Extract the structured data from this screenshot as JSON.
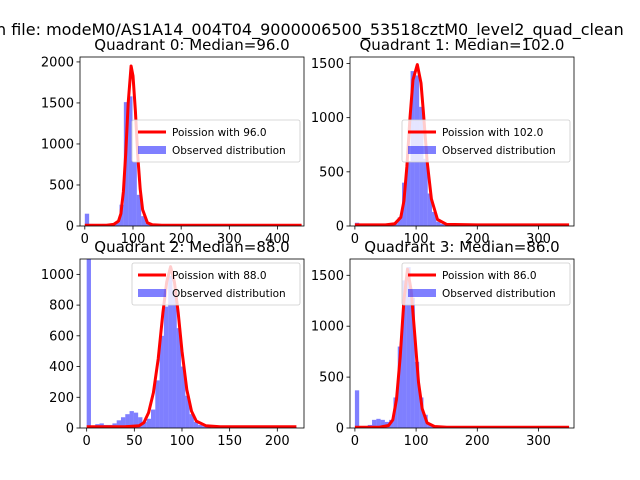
{
  "figure": {
    "suptitle": "n file: modeM0/AS1A14_004T04_9000006500_53518cztM0_level2_quad_clean"
  },
  "chart_data": [
    {
      "type": "bar",
      "title": "Quadrant 0: Median=96.0",
      "xlim": [
        -10,
        455
      ],
      "ylim": [
        0,
        2060
      ],
      "xticks": [
        0,
        100,
        200,
        300,
        400
      ],
      "yticks": [
        0,
        500,
        1000,
        1500,
        2000
      ],
      "legend_position": "center-right",
      "series": [
        {
          "name": "Poission with 96.0",
          "kind": "line",
          "color": "#ff0000",
          "x": [
            0,
            45,
            60,
            70,
            75,
            80,
            85,
            90,
            96,
            100,
            105,
            110,
            115,
            120,
            130,
            140,
            160,
            200,
            300,
            450
          ],
          "values": [
            10,
            10,
            20,
            60,
            150,
            420,
            900,
            1500,
            1950,
            1830,
            1400,
            850,
            450,
            200,
            40,
            15,
            10,
            10,
            10,
            10
          ]
        },
        {
          "name": "Observed distribution",
          "kind": "hist",
          "color": "#0000ff",
          "bin_width": 9,
          "bins": [
            {
              "x": 0,
              "y": 150
            },
            {
              "x": 9,
              "y": 25
            },
            {
              "x": 18,
              "y": 20
            },
            {
              "x": 27,
              "y": 20
            },
            {
              "x": 36,
              "y": 25
            },
            {
              "x": 45,
              "y": 25
            },
            {
              "x": 54,
              "y": 30
            },
            {
              "x": 63,
              "y": 40
            },
            {
              "x": 72,
              "y": 260
            },
            {
              "x": 81,
              "y": 1510
            },
            {
              "x": 90,
              "y": 1580
            },
            {
              "x": 99,
              "y": 780
            },
            {
              "x": 108,
              "y": 380
            },
            {
              "x": 117,
              "y": 120
            },
            {
              "x": 126,
              "y": 40
            },
            {
              "x": 135,
              "y": 15
            },
            {
              "x": 144,
              "y": 10
            },
            {
              "x": 153,
              "y": 8
            },
            {
              "x": 162,
              "y": 6
            },
            {
              "x": 171,
              "y": 5
            },
            {
              "x": 180,
              "y": 5
            },
            {
              "x": 190,
              "y": 4
            },
            {
              "x": 200,
              "y": 3
            },
            {
              "x": 250,
              "y": 3
            },
            {
              "x": 300,
              "y": 3
            },
            {
              "x": 350,
              "y": 3
            },
            {
              "x": 400,
              "y": 3
            },
            {
              "x": 440,
              "y": 3
            }
          ]
        }
      ]
    },
    {
      "type": "bar",
      "title": "Quadrant 1: Median=102.0",
      "xlim": [
        -8,
        358
      ],
      "ylim": [
        0,
        1560
      ],
      "xticks": [
        0,
        100,
        200,
        300
      ],
      "yticks": [
        0,
        500,
        1000,
        1500
      ],
      "legend_position": "center-right",
      "series": [
        {
          "name": "Poission with 102.0",
          "kind": "line",
          "color": "#ff0000",
          "x": [
            0,
            50,
            65,
            75,
            80,
            85,
            90,
            95,
            102,
            108,
            112,
            118,
            125,
            135,
            150,
            200,
            350
          ],
          "values": [
            10,
            10,
            20,
            80,
            230,
            550,
            1000,
            1350,
            1490,
            1320,
            1050,
            600,
            250,
            60,
            15,
            10,
            10
          ]
        },
        {
          "name": "Observed distribution",
          "kind": "hist",
          "color": "#0000ff",
          "bin_width": 7,
          "bins": [
            {
              "x": 0,
              "y": 30
            },
            {
              "x": 7,
              "y": 10
            },
            {
              "x": 14,
              "y": 8
            },
            {
              "x": 21,
              "y": 8
            },
            {
              "x": 28,
              "y": 10
            },
            {
              "x": 35,
              "y": 10
            },
            {
              "x": 42,
              "y": 10
            },
            {
              "x": 49,
              "y": 12
            },
            {
              "x": 56,
              "y": 15
            },
            {
              "x": 63,
              "y": 25
            },
            {
              "x": 70,
              "y": 80
            },
            {
              "x": 77,
              "y": 400
            },
            {
              "x": 84,
              "y": 600
            },
            {
              "x": 91,
              "y": 1430
            },
            {
              "x": 98,
              "y": 1390
            },
            {
              "x": 105,
              "y": 1100
            },
            {
              "x": 112,
              "y": 620
            },
            {
              "x": 119,
              "y": 300
            },
            {
              "x": 126,
              "y": 130
            },
            {
              "x": 133,
              "y": 40
            },
            {
              "x": 140,
              "y": 20
            },
            {
              "x": 147,
              "y": 12
            },
            {
              "x": 200,
              "y": 5
            },
            {
              "x": 300,
              "y": 4
            },
            {
              "x": 343,
              "y": 4
            }
          ]
        }
      ]
    },
    {
      "type": "bar",
      "title": "Quadrant 2: Median=88.0",
      "xlim": [
        -7,
        228
      ],
      "ylim": [
        0,
        1100
      ],
      "xticks": [
        0,
        50,
        100,
        150,
        200
      ],
      "yticks": [
        0,
        200,
        400,
        600,
        800,
        1000
      ],
      "legend_position": "top-right",
      "series": [
        {
          "name": "Poission with 88.0",
          "kind": "line",
          "color": "#ff0000",
          "x": [
            0,
            40,
            55,
            60,
            65,
            70,
            75,
            80,
            84,
            88,
            92,
            96,
            100,
            105,
            110,
            115,
            125,
            140,
            220
          ],
          "values": [
            8,
            8,
            15,
            35,
            100,
            230,
            450,
            750,
            950,
            1050,
            950,
            750,
            500,
            250,
            110,
            45,
            15,
            8,
            8
          ]
        },
        {
          "name": "Observed distribution",
          "kind": "hist",
          "color": "#0000ff",
          "bin_width": 4.5,
          "bins": [
            {
              "x": 0,
              "y": 1100
            },
            {
              "x": 4.5,
              "y": 10
            },
            {
              "x": 9,
              "y": 25
            },
            {
              "x": 13.5,
              "y": 30
            },
            {
              "x": 18,
              "y": 20
            },
            {
              "x": 22.5,
              "y": 20
            },
            {
              "x": 27,
              "y": 30
            },
            {
              "x": 31.5,
              "y": 50
            },
            {
              "x": 36,
              "y": 70
            },
            {
              "x": 40.5,
              "y": 90
            },
            {
              "x": 45,
              "y": 110
            },
            {
              "x": 49.5,
              "y": 100
            },
            {
              "x": 54,
              "y": 70
            },
            {
              "x": 58.5,
              "y": 40
            },
            {
              "x": 63,
              "y": 60
            },
            {
              "x": 67.5,
              "y": 120
            },
            {
              "x": 72,
              "y": 310
            },
            {
              "x": 76.5,
              "y": 600
            },
            {
              "x": 81,
              "y": 790
            },
            {
              "x": 85.5,
              "y": 990
            },
            {
              "x": 90,
              "y": 900
            },
            {
              "x": 94.5,
              "y": 650
            },
            {
              "x": 99,
              "y": 400
            },
            {
              "x": 103.5,
              "y": 210
            },
            {
              "x": 108,
              "y": 90
            },
            {
              "x": 112.5,
              "y": 40
            },
            {
              "x": 117,
              "y": 20
            },
            {
              "x": 121.5,
              "y": 12
            },
            {
              "x": 126,
              "y": 8
            },
            {
              "x": 150,
              "y": 5
            },
            {
              "x": 200,
              "y": 4
            },
            {
              "x": 216,
              "y": 4
            }
          ]
        }
      ]
    },
    {
      "type": "bar",
      "title": "Quadrant 3: Median=86.0",
      "xlim": [
        -8,
        358
      ],
      "ylim": [
        0,
        1660
      ],
      "xticks": [
        0,
        100,
        200,
        300
      ],
      "yticks": [
        0,
        500,
        1000,
        1500
      ],
      "legend_position": "top-right",
      "series": [
        {
          "name": "Poission with 86.0",
          "kind": "line",
          "color": "#ff0000",
          "x": [
            0,
            40,
            55,
            62,
            68,
            74,
            80,
            86,
            92,
            98,
            104,
            110,
            118,
            130,
            150,
            200,
            350
          ],
          "values": [
            8,
            8,
            25,
            80,
            280,
            700,
            1250,
            1560,
            1350,
            900,
            450,
            190,
            50,
            15,
            8,
            8,
            8
          ]
        },
        {
          "name": "Observed distribution",
          "kind": "hist",
          "color": "#0000ff",
          "bin_width": 7,
          "bins": [
            {
              "x": 0,
              "y": 370
            },
            {
              "x": 7,
              "y": 10
            },
            {
              "x": 14,
              "y": 20
            },
            {
              "x": 21,
              "y": 30
            },
            {
              "x": 28,
              "y": 80
            },
            {
              "x": 35,
              "y": 90
            },
            {
              "x": 42,
              "y": 80
            },
            {
              "x": 49,
              "y": 60
            },
            {
              "x": 56,
              "y": 80
            },
            {
              "x": 63,
              "y": 300
            },
            {
              "x": 70,
              "y": 800
            },
            {
              "x": 77,
              "y": 1450
            },
            {
              "x": 84,
              "y": 1580
            },
            {
              "x": 91,
              "y": 1280
            },
            {
              "x": 98,
              "y": 650
            },
            {
              "x": 105,
              "y": 300
            },
            {
              "x": 112,
              "y": 130
            },
            {
              "x": 119,
              "y": 40
            },
            {
              "x": 126,
              "y": 15
            },
            {
              "x": 133,
              "y": 8
            },
            {
              "x": 200,
              "y": 4
            },
            {
              "x": 300,
              "y": 4
            },
            {
              "x": 343,
              "y": 4
            }
          ]
        }
      ]
    }
  ]
}
